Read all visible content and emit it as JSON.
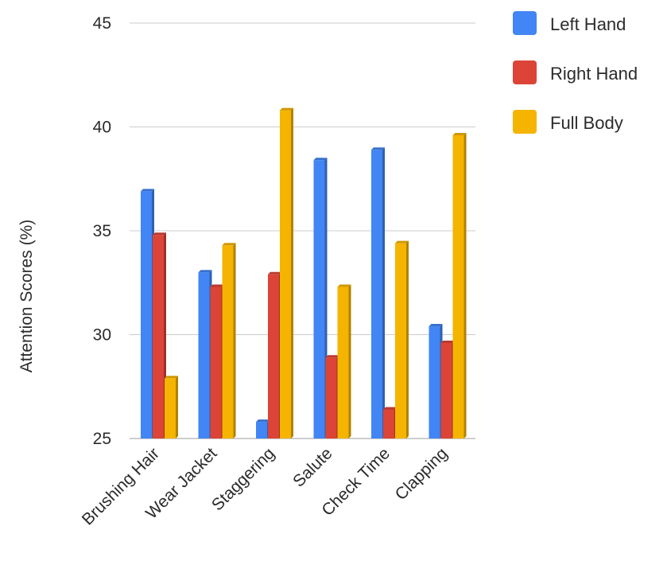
{
  "chart_data": {
    "type": "bar",
    "title": "",
    "xlabel": "",
    "ylabel": "Attention Scores (%)",
    "ylim": [
      25,
      45
    ],
    "yticks": [
      25,
      30,
      35,
      40,
      45
    ],
    "grid": true,
    "legend_position": "top-right",
    "categories": [
      "Brushing Hair",
      "Wear Jacket",
      "Staggering",
      "Salute",
      "Check Time",
      "Clapping"
    ],
    "series": [
      {
        "name": "Left Hand",
        "color": "#4285f4",
        "values": [
          36.9,
          33.0,
          25.8,
          38.4,
          38.9,
          30.4
        ]
      },
      {
        "name": "Right Hand",
        "color": "#db4437",
        "values": [
          34.8,
          32.3,
          32.9,
          28.9,
          26.4,
          29.6
        ]
      },
      {
        "name": "Full Body",
        "color": "#f4b400",
        "values": [
          27.9,
          34.3,
          40.8,
          32.3,
          34.4,
          39.6
        ]
      }
    ]
  }
}
